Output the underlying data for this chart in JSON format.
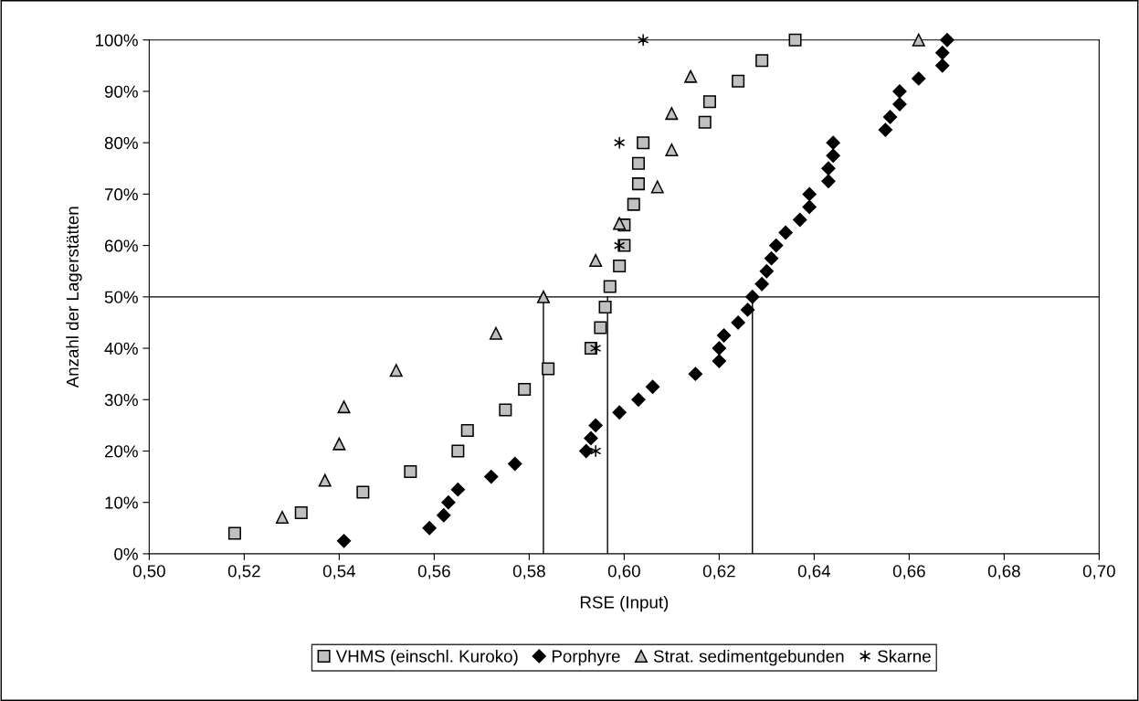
{
  "chart_data": {
    "type": "scatter",
    "xlabel": "RSE (Input)",
    "ylabel": "Anzahl der Lagerstätten",
    "xlim": [
      0.5,
      0.7
    ],
    "ylim": [
      0,
      100
    ],
    "grid": false,
    "legend": "bottom",
    "xticks": [
      {
        "value": 0.5,
        "label": "0,50"
      },
      {
        "value": 0.52,
        "label": "0,52"
      },
      {
        "value": 0.54,
        "label": "0,54"
      },
      {
        "value": 0.56,
        "label": "0,56"
      },
      {
        "value": 0.58,
        "label": "0,58"
      },
      {
        "value": 0.6,
        "label": "0,60"
      },
      {
        "value": 0.62,
        "label": "0,62"
      },
      {
        "value": 0.64,
        "label": "0,64"
      },
      {
        "value": 0.66,
        "label": "0,66"
      },
      {
        "value": 0.68,
        "label": "0,68"
      },
      {
        "value": 0.7,
        "label": "0,70"
      }
    ],
    "yticks": [
      {
        "value": 0,
        "label": "0%"
      },
      {
        "value": 10,
        "label": "10%"
      },
      {
        "value": 20,
        "label": "20%"
      },
      {
        "value": 30,
        "label": "30%"
      },
      {
        "value": 40,
        "label": "40%"
      },
      {
        "value": 50,
        "label": "50%"
      },
      {
        "value": 60,
        "label": "60%"
      },
      {
        "value": 70,
        "label": "70%"
      },
      {
        "value": 80,
        "label": "80%"
      },
      {
        "value": 90,
        "label": "90%"
      },
      {
        "value": 100,
        "label": "100%"
      }
    ],
    "ref_lines": [
      {
        "axis": "y",
        "value": 50,
        "color": "#000000"
      },
      {
        "axis": "x",
        "value": 0.583,
        "color": "#000000"
      },
      {
        "axis": "x",
        "value": 0.5965,
        "color": "#000000"
      },
      {
        "axis": "x",
        "value": 0.627,
        "color": "#000000"
      }
    ],
    "series": [
      {
        "name": "VHMS (einschl. Kuroko)",
        "color": "#c0c0c0",
        "marker": "square",
        "x": [
          0.518,
          0.532,
          0.545,
          0.555,
          0.565,
          0.567,
          0.575,
          0.579,
          0.584,
          0.593,
          0.595,
          0.596,
          0.597,
          0.599,
          0.6,
          0.6,
          0.602,
          0.603,
          0.603,
          0.604,
          0.617,
          0.618,
          0.624,
          0.629,
          0.636
        ],
        "values": [
          4,
          8,
          12,
          16,
          20,
          24,
          28,
          32,
          36,
          40,
          44,
          48,
          52,
          56,
          60,
          64,
          68,
          72,
          76,
          80,
          84,
          88,
          92,
          96,
          100
        ]
      },
      {
        "name": "Porphyre",
        "color": "#000000",
        "marker": "diamond",
        "x": [
          0.541,
          0.559,
          0.562,
          0.563,
          0.565,
          0.572,
          0.577,
          0.592,
          0.593,
          0.594,
          0.599,
          0.603,
          0.606,
          0.615,
          0.62,
          0.62,
          0.621,
          0.624,
          0.626,
          0.627,
          0.629,
          0.63,
          0.631,
          0.632,
          0.634,
          0.637,
          0.639,
          0.639,
          0.643,
          0.643,
          0.644,
          0.644,
          0.655,
          0.656,
          0.658,
          0.658,
          0.662,
          0.667,
          0.667,
          0.668
        ],
        "values": [
          2.5,
          5,
          7.5,
          10,
          12.5,
          15,
          17.5,
          20,
          22.5,
          25,
          27.5,
          30,
          32.5,
          35,
          37.5,
          40,
          42.5,
          45,
          47.5,
          50,
          52.5,
          55,
          57.5,
          60,
          62.5,
          65,
          67.5,
          70,
          72.5,
          75,
          77.5,
          80,
          82.5,
          85,
          87.5,
          90,
          92.5,
          95,
          97.5,
          100
        ]
      },
      {
        "name": "Strat. sedimentgebunden",
        "color": "#c0c0c0",
        "marker": "triangle",
        "x": [
          0.528,
          0.537,
          0.54,
          0.541,
          0.552,
          0.573,
          0.583,
          0.594,
          0.599,
          0.607,
          0.61,
          0.61,
          0.614,
          0.662
        ],
        "values": [
          7.1,
          14.3,
          21.4,
          28.6,
          35.7,
          42.9,
          50,
          57.1,
          64.3,
          71.4,
          78.6,
          85.7,
          92.9,
          100
        ]
      },
      {
        "name": "Skarne",
        "color": "#000000",
        "marker": "cross",
        "x": [
          0.594,
          0.594,
          0.599,
          0.599,
          0.604
        ],
        "values": [
          20,
          40,
          60,
          80,
          100
        ]
      }
    ]
  }
}
